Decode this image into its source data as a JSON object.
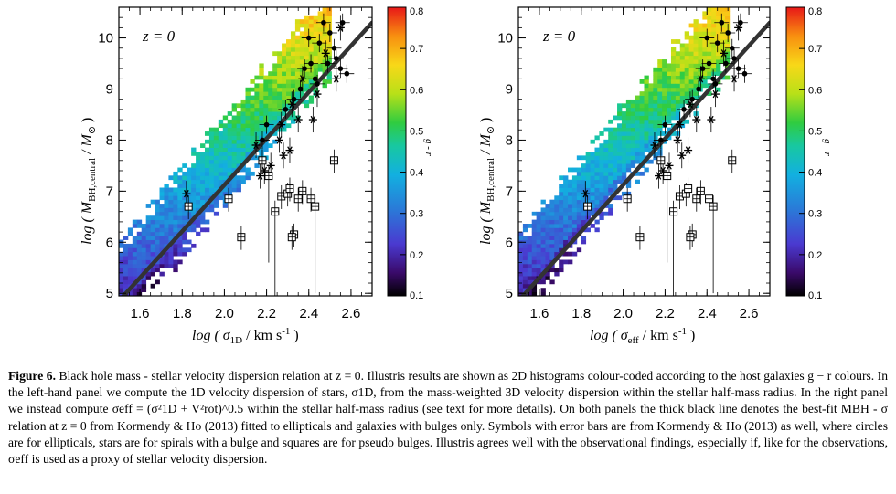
{
  "chart_data": [
    {
      "type": "heatmap",
      "panel": "left",
      "annotation": "z = 0",
      "xlabel": "log ( σ_1D / km s^-1 )",
      "xlabel_main": "log ( σ",
      "xlabel_sub": "1D",
      "xlabel_tail": " / km s",
      "xlabel_sup": "-1",
      "xlabel_close": " )",
      "ylabel_main": "log ( M",
      "ylabel_sub": "BH,central",
      "ylabel_tail": " / M",
      "ylabel_sun": "⊙",
      "ylabel_close": " )",
      "xlim": [
        1.5,
        2.7
      ],
      "ylim": [
        4.95,
        10.6
      ],
      "xticks": [
        "1.6",
        "1.8",
        "2.0",
        "2.2",
        "2.4",
        "2.6"
      ],
      "yticks": [
        "5",
        "6",
        "7",
        "8",
        "9",
        "10"
      ],
      "colorbar": {
        "label": "g - r",
        "range": [
          0.1,
          0.8
        ],
        "ticks": [
          "0.8",
          "0.7",
          "0.6",
          "0.5",
          "0.4",
          "0.3",
          "0.2",
          "0.1"
        ]
      },
      "best_fit_line": {
        "x": [
          1.5,
          2.7
        ],
        "y": [
          4.85,
          10.3
        ]
      },
      "histogram_ridge": {
        "x": [
          1.5,
          1.6,
          1.7,
          1.8,
          1.9,
          2.0,
          2.1,
          2.2,
          2.3,
          2.4
        ],
        "y": [
          5.3,
          5.8,
          6.3,
          6.8,
          7.3,
          7.8,
          8.3,
          8.8,
          9.3,
          9.8
        ]
      }
    },
    {
      "type": "heatmap",
      "panel": "right",
      "annotation": "z = 0",
      "xlabel": "log ( σ_eff / km s^-1 )",
      "xlabel_main": "log ( σ",
      "xlabel_sub": "eff",
      "xlabel_tail": " / km s",
      "xlabel_sup": "-1",
      "xlabel_close": " )",
      "ylabel_main": "log ( M",
      "ylabel_sub": "BH,central",
      "ylabel_tail": " / M",
      "ylabel_sun": "⊙",
      "ylabel_close": " )",
      "xlim": [
        1.5,
        2.7
      ],
      "ylim": [
        4.95,
        10.6
      ],
      "xticks": [
        "1.6",
        "1.8",
        "2.0",
        "2.2",
        "2.4",
        "2.6"
      ],
      "yticks": [
        "5",
        "6",
        "7",
        "8",
        "9",
        "10"
      ],
      "colorbar": {
        "label": "g - r",
        "range": [
          0.1,
          0.8
        ],
        "ticks": [
          "0.8",
          "0.7",
          "0.6",
          "0.5",
          "0.4",
          "0.3",
          "0.2",
          "0.1"
        ]
      },
      "best_fit_line": {
        "x": [
          1.5,
          2.7
        ],
        "y": [
          4.85,
          10.3
        ]
      },
      "histogram_ridge": {
        "x": [
          1.5,
          1.6,
          1.7,
          1.8,
          1.9,
          2.0,
          2.1,
          2.2,
          2.3,
          2.4
        ],
        "y": [
          5.4,
          5.95,
          6.5,
          7.0,
          7.5,
          8.0,
          8.5,
          9.0,
          9.45,
          9.9
        ]
      }
    }
  ],
  "observations": {
    "ellipticals": [
      {
        "x": 2.41,
        "y": 9.5
      },
      {
        "x": 2.45,
        "y": 9.9
      },
      {
        "x": 2.55,
        "y": 9.4
      },
      {
        "x": 2.52,
        "y": 9.8
      },
      {
        "x": 2.5,
        "y": 10.1
      },
      {
        "x": 2.43,
        "y": 9.2
      },
      {
        "x": 2.36,
        "y": 9.0
      },
      {
        "x": 2.47,
        "y": 10.3
      },
      {
        "x": 2.58,
        "y": 9.3
      },
      {
        "x": 2.38,
        "y": 9.4
      },
      {
        "x": 2.33,
        "y": 8.8
      },
      {
        "x": 2.29,
        "y": 8.6
      },
      {
        "x": 2.53,
        "y": 9.6
      },
      {
        "x": 2.2,
        "y": 8.3
      },
      {
        "x": 2.4,
        "y": 10.0
      },
      {
        "x": 2.56,
        "y": 10.3
      },
      {
        "x": 2.44,
        "y": 9.1
      },
      {
        "x": 2.18,
        "y": 8.0
      },
      {
        "x": 2.49,
        "y": 9.5
      }
    ],
    "spirals_with_bulge": [
      {
        "x": 1.82,
        "y": 6.95
      },
      {
        "x": 2.15,
        "y": 7.9
      },
      {
        "x": 2.27,
        "y": 8.3
      },
      {
        "x": 2.32,
        "y": 8.7
      },
      {
        "x": 2.35,
        "y": 8.4
      },
      {
        "x": 2.37,
        "y": 9.2
      },
      {
        "x": 2.42,
        "y": 8.4
      },
      {
        "x": 2.44,
        "y": 8.9
      },
      {
        "x": 2.22,
        "y": 7.5
      },
      {
        "x": 2.19,
        "y": 7.4
      },
      {
        "x": 2.31,
        "y": 7.8
      },
      {
        "x": 2.26,
        "y": 8.0
      },
      {
        "x": 2.48,
        "y": 9.7
      },
      {
        "x": 2.55,
        "y": 10.2
      },
      {
        "x": 2.53,
        "y": 9.2
      },
      {
        "x": 2.17,
        "y": 7.3
      },
      {
        "x": 2.28,
        "y": 7.7
      }
    ],
    "pseudo_bulges": [
      {
        "x": 1.83,
        "y": 6.7
      },
      {
        "x": 2.02,
        "y": 6.85
      },
      {
        "x": 2.08,
        "y": 6.1
      },
      {
        "x": 2.18,
        "y": 7.6
      },
      {
        "x": 2.21,
        "y": 7.3
      },
      {
        "x": 2.24,
        "y": 6.6
      },
      {
        "x": 2.27,
        "y": 6.9
      },
      {
        "x": 2.3,
        "y": 6.95
      },
      {
        "x": 2.31,
        "y": 7.05
      },
      {
        "x": 2.33,
        "y": 6.15
      },
      {
        "x": 2.35,
        "y": 6.85
      },
      {
        "x": 2.37,
        "y": 7.0
      },
      {
        "x": 2.41,
        "y": 6.85
      },
      {
        "x": 2.43,
        "y": 6.7
      },
      {
        "x": 2.52,
        "y": 7.6
      },
      {
        "x": 2.32,
        "y": 6.1
      }
    ]
  },
  "caption": {
    "figure_number": "Figure 6.",
    "text": " Black hole mass - stellar velocity dispersion relation at z = 0. Illustris results are shown as 2D histograms colour-coded according to the host galaxies g − r colours. In the left-hand panel we compute the 1D velocity dispersion of stars, σ1D, from the mass-weighted 3D velocity dispersion within the stellar half-mass radius. In the right panel we instead compute σeff = (σ²1D + V²rot)^0.5 within the stellar half-mass radius (see text for more details). On both panels the thick black line denotes the best-fit MBH - σ relation at z = 0 from Kormendy & Ho (2013) fitted to ellipticals and galaxies with bulges only. Symbols with error bars are from Kormendy & Ho (2013) as well, where circles are for ellipticals, stars are for spirals with a bulge and squares are for pseudo bulges. Illustris agrees well with the observational findings, especially if, like for the observations, σeff is used as a proxy of stellar velocity dispersion."
  }
}
